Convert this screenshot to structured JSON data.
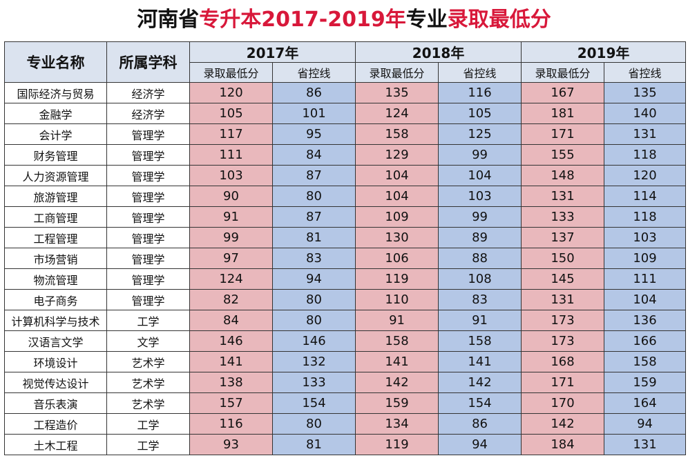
{
  "title": {
    "part1": "河南省",
    "part2": "专升本2017-2019年",
    "part3": "专业",
    "part4": "录取最低分"
  },
  "header": {
    "major": "专业名称",
    "category": "所属学科",
    "years": [
      "2017年",
      "2018年",
      "2019年"
    ],
    "min_score": "录取最低分",
    "control_line": "省控线"
  },
  "colors": {
    "min_score_bg": "#e9b8bc",
    "control_line_bg": "#b4c7e6",
    "title_red": "#d8183a",
    "header_bg": "#dbe3ef"
  },
  "rows": [
    {
      "major": "国际经济与贸易",
      "category": "经济学",
      "s2017": "120",
      "c2017": "86",
      "s2018": "135",
      "c2018": "116",
      "s2019": "167",
      "c2019": "135"
    },
    {
      "major": "金融学",
      "category": "经济学",
      "s2017": "105",
      "c2017": "101",
      "s2018": "124",
      "c2018": "105",
      "s2019": "181",
      "c2019": "140"
    },
    {
      "major": "会计学",
      "category": "管理学",
      "s2017": "117",
      "c2017": "95",
      "s2018": "158",
      "c2018": "125",
      "s2019": "171",
      "c2019": "131"
    },
    {
      "major": "财务管理",
      "category": "管理学",
      "s2017": "111",
      "c2017": "84",
      "s2018": "129",
      "c2018": "99",
      "s2019": "155",
      "c2019": "118"
    },
    {
      "major": "人力资源管理",
      "category": "管理学",
      "s2017": "103",
      "c2017": "87",
      "s2018": "104",
      "c2018": "104",
      "s2019": "148",
      "c2019": "120"
    },
    {
      "major": "旅游管理",
      "category": "管理学",
      "s2017": "90",
      "c2017": "80",
      "s2018": "104",
      "c2018": "103",
      "s2019": "131",
      "c2019": "114"
    },
    {
      "major": "工商管理",
      "category": "管理学",
      "s2017": "91",
      "c2017": "87",
      "s2018": "109",
      "c2018": "99",
      "s2019": "133",
      "c2019": "118"
    },
    {
      "major": "工程管理",
      "category": "管理学",
      "s2017": "99",
      "c2017": "81",
      "s2018": "130",
      "c2018": "89",
      "s2019": "137",
      "c2019": "103"
    },
    {
      "major": "市场营销",
      "category": "管理学",
      "s2017": "97",
      "c2017": "83",
      "s2018": "106",
      "c2018": "88",
      "s2019": "150",
      "c2019": "109"
    },
    {
      "major": "物流管理",
      "category": "管理学",
      "s2017": "124",
      "c2017": "94",
      "s2018": "119",
      "c2018": "108",
      "s2019": "145",
      "c2019": "111"
    },
    {
      "major": "电子商务",
      "category": "管理学",
      "s2017": "82",
      "c2017": "80",
      "s2018": "110",
      "c2018": "83",
      "s2019": "131",
      "c2019": "104"
    },
    {
      "major": "计算机科学与技术",
      "category": "工学",
      "s2017": "84",
      "c2017": "80",
      "s2018": "91",
      "c2018": "91",
      "s2019": "173",
      "c2019": "136"
    },
    {
      "major": "汉语言文学",
      "category": "文学",
      "s2017": "146",
      "c2017": "146",
      "s2018": "158",
      "c2018": "158",
      "s2019": "173",
      "c2019": "166"
    },
    {
      "major": "环境设计",
      "category": "艺术学",
      "s2017": "141",
      "c2017": "132",
      "s2018": "141",
      "c2018": "141",
      "s2019": "168",
      "c2019": "158"
    },
    {
      "major": "视觉传达设计",
      "category": "艺术学",
      "s2017": "138",
      "c2017": "133",
      "s2018": "142",
      "c2018": "142",
      "s2019": "171",
      "c2019": "159"
    },
    {
      "major": "音乐表演",
      "category": "艺术学",
      "s2017": "157",
      "c2017": "154",
      "s2018": "159",
      "c2018": "154",
      "s2019": "170",
      "c2019": "164"
    },
    {
      "major": "工程造价",
      "category": "工学",
      "s2017": "116",
      "c2017": "80",
      "s2018": "134",
      "c2018": "86",
      "s2019": "142",
      "c2019": "94"
    },
    {
      "major": "土木工程",
      "category": "工学",
      "s2017": "93",
      "c2017": "81",
      "s2018": "119",
      "c2018": "94",
      "s2019": "184",
      "c2019": "131"
    }
  ]
}
